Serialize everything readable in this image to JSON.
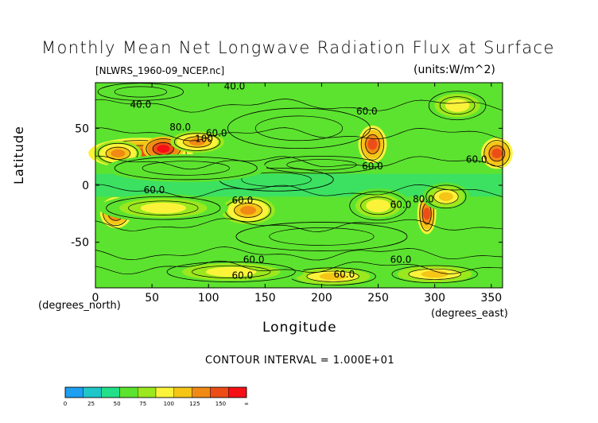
{
  "chart_data": {
    "type": "heatmap",
    "title": "Monthly Mean Net Longwave Radiation Flux at Surface",
    "subtitle": "[NLWRS_1960-09_NCEP.nc]",
    "units": "(units:W/m^2)",
    "xlabel": "Longitude",
    "ylabel": "Latitude",
    "x_unit_label": "(degrees_east)",
    "y_unit_label": "(degrees_north)",
    "xlim": [
      0,
      360
    ],
    "ylim": [
      -90,
      90
    ],
    "x_ticks": [
      0,
      50,
      100,
      150,
      200,
      250,
      300,
      350
    ],
    "y_ticks": [
      50,
      0,
      -50
    ],
    "contour_interval_text": "CONTOUR INTERVAL = 1.000E+01",
    "contour_labels": [
      "40.0",
      "60.0",
      "80.0",
      "100",
      "60.0",
      "60.0",
      "60.0",
      "60.0",
      "60.0",
      "60.0",
      "80.0",
      "60.0",
      "60.0",
      "60.0",
      "60.0",
      "40.0"
    ],
    "colorbar": {
      "tick_labels": [
        "0",
        "25",
        "50",
        "75",
        "100",
        "125",
        "150",
        "∞"
      ],
      "colors": [
        "#1e9ff0",
        "#1fc7c9",
        "#22e08a",
        "#5ce32f",
        "#9be81e",
        "#fbf33a",
        "#f5c517",
        "#f08a14",
        "#ec4d17",
        "#f51016"
      ]
    },
    "regions": [
      {
        "lon": 40,
        "lat": 28,
        "level": 8,
        "rx": 32,
        "ry": 9
      },
      {
        "lon": 60,
        "lat": 32,
        "level": 9,
        "rx": 12,
        "ry": 7
      },
      {
        "lon": 20,
        "lat": 28,
        "level": 7,
        "rx": 14,
        "ry": 7
      },
      {
        "lon": 90,
        "lat": 38,
        "level": 7,
        "rx": 16,
        "ry": 6
      },
      {
        "lon": 245,
        "lat": 36,
        "level": 8,
        "rx": 8,
        "ry": 11
      },
      {
        "lon": 355,
        "lat": 28,
        "level": 8,
        "rx": 9,
        "ry": 9
      },
      {
        "lon": 18,
        "lat": -24,
        "level": 8,
        "rx": 9,
        "ry": 9
      },
      {
        "lon": 135,
        "lat": -22,
        "level": 7,
        "rx": 16,
        "ry": 8
      },
      {
        "lon": 293,
        "lat": -25,
        "level": 8,
        "rx": 5,
        "ry": 12
      },
      {
        "lon": 310,
        "lat": -10,
        "level": 6,
        "rx": 14,
        "ry": 8
      },
      {
        "lon": 210,
        "lat": -80,
        "level": 6,
        "rx": 30,
        "ry": 6
      },
      {
        "lon": 120,
        "lat": -76,
        "level": 5,
        "rx": 45,
        "ry": 7
      },
      {
        "lon": 300,
        "lat": -78,
        "level": 6,
        "rx": 30,
        "ry": 6
      },
      {
        "lon": 60,
        "lat": -20,
        "level": 5,
        "rx": 40,
        "ry": 8
      },
      {
        "lon": 250,
        "lat": -18,
        "level": 5,
        "rx": 20,
        "ry": 10
      },
      {
        "lon": 200,
        "lat": 18,
        "level": 2,
        "rx": 40,
        "ry": 6
      },
      {
        "lon": 160,
        "lat": 5,
        "level": 2,
        "rx": 40,
        "ry": 8
      },
      {
        "lon": 80,
        "lat": 15,
        "level": 3,
        "rx": 50,
        "ry": 8
      },
      {
        "lon": 180,
        "lat": 50,
        "level": 2,
        "rx": 50,
        "ry": 14
      },
      {
        "lon": 200,
        "lat": -45,
        "level": 3,
        "rx": 60,
        "ry": 10
      },
      {
        "lon": 40,
        "lat": 82,
        "level": 2,
        "rx": 30,
        "ry": 6
      },
      {
        "lon": 320,
        "lat": 70,
        "level": 5,
        "rx": 20,
        "ry": 10
      }
    ],
    "contour_label_positions": [
      {
        "lon": 123,
        "lat": 84
      },
      {
        "lon": 240,
        "lat": 62
      },
      {
        "lon": 75,
        "lat": 48
      },
      {
        "lon": 96,
        "lat": 38
      },
      {
        "lon": 107,
        "lat": 43
      },
      {
        "lon": 245,
        "lat": 14
      },
      {
        "lon": 337,
        "lat": 20
      },
      {
        "lon": 52,
        "lat": -7
      },
      {
        "lon": 130,
        "lat": -16
      },
      {
        "lon": 270,
        "lat": -20
      },
      {
        "lon": 290,
        "lat": -15
      },
      {
        "lon": 140,
        "lat": -68
      },
      {
        "lon": 270,
        "lat": -68
      },
      {
        "lon": 220,
        "lat": -81
      },
      {
        "lon": 130,
        "lat": -82
      },
      {
        "lon": 40,
        "lat": 68
      }
    ]
  }
}
